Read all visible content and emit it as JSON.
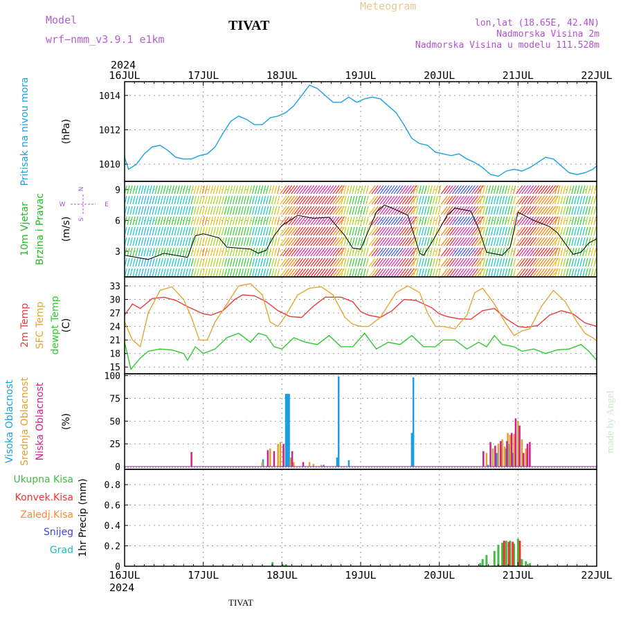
{
  "header": {
    "model_label": "Model",
    "model_name": "wrf−nmm_v3.9.1  e1km",
    "station": "TIVAT",
    "chart_title": "Meteogram",
    "location": "lon,lat (18.65E, 42.4N)",
    "elevation": "Nadmorska Visina 2m",
    "model_elevation": "Nadmorska Visina u modelu 111.528m",
    "year": "2024",
    "footer_station": "TIVAT",
    "watermark": "made by Angel"
  },
  "colors": {
    "pressure": "#1aa0e6",
    "temp2m": "#e83c3c",
    "sfc": "#e3a534",
    "dew": "#2dcc2d",
    "high_cloud": "#1a9fe0",
    "mid_cloud": "#e0a030",
    "low_cloud": "#d0208a",
    "total_precip": "#44bb44",
    "conv_precip": "#ee3333",
    "frz_precip": "#ff8833",
    "snow": "#4444dd",
    "grad": "#22bbbb"
  },
  "chart_data": [
    {
      "type": "line",
      "panel": "pressure",
      "ylabel": "(hPa)",
      "side_labels": [
        "Pritisak na nivou mora"
      ],
      "yticks": [
        1010,
        1012,
        1014
      ],
      "ylim": [
        1009,
        1014.8
      ],
      "x_ticks": [
        "16JUL",
        "17JUL",
        "18JUL",
        "19JUL",
        "20JUL",
        "21JUL",
        "22JUL"
      ],
      "x_day_range": [
        0,
        6
      ],
      "series": [
        {
          "color_key": "pressure",
          "x": [
            0,
            0.05,
            0.15,
            0.25,
            0.35,
            0.45,
            0.55,
            0.65,
            0.75,
            0.85,
            0.95,
            1.05,
            1.15,
            1.25,
            1.35,
            1.45,
            1.55,
            1.65,
            1.75,
            1.85,
            1.95,
            2.05,
            2.15,
            2.25,
            2.35,
            2.45,
            2.55,
            2.65,
            2.75,
            2.85,
            2.95,
            3.05,
            3.15,
            3.25,
            3.35,
            3.45,
            3.55,
            3.65,
            3.75,
            3.85,
            3.95,
            4.05,
            4.15,
            4.25,
            4.35,
            4.45,
            4.55,
            4.65,
            4.75,
            4.85,
            4.95,
            5.05,
            5.15,
            5.25,
            5.35,
            5.45,
            5.55,
            5.65,
            5.75,
            5.85,
            5.95,
            6.0
          ],
          "y": [
            1010.4,
            1009.7,
            1010.0,
            1010.6,
            1011.0,
            1011.1,
            1010.8,
            1010.4,
            1010.3,
            1010.3,
            1010.5,
            1010.6,
            1011.0,
            1011.8,
            1012.5,
            1012.8,
            1012.6,
            1012.3,
            1012.3,
            1012.7,
            1012.8,
            1013.0,
            1013.4,
            1014.0,
            1014.6,
            1014.4,
            1014.0,
            1013.6,
            1013.6,
            1013.9,
            1013.6,
            1013.8,
            1013.9,
            1013.8,
            1013.4,
            1013.0,
            1012.3,
            1011.5,
            1011.2,
            1011.1,
            1010.7,
            1010.6,
            1010.5,
            1010.6,
            1010.3,
            1010.1,
            1009.8,
            1009.4,
            1009.3,
            1009.6,
            1009.7,
            1009.6,
            1009.8,
            1010.1,
            1010.4,
            1010.3,
            1009.9,
            1009.5,
            1009.4,
            1009.5,
            1009.7,
            1009.9
          ]
        }
      ]
    },
    {
      "type": "line",
      "panel": "wind",
      "ylabel": "(m/s)",
      "side_labels": [
        "10m Vjetar",
        "Brzina i Pravac"
      ],
      "compass": {
        "n": "N",
        "w": "W",
        "e": "E",
        "s": "S"
      },
      "yticks": [
        3,
        6,
        9
      ],
      "ylim": [
        0.5,
        9.8
      ],
      "x_day_range": [
        0,
        6
      ],
      "series": [
        {
          "name": "speed",
          "color": "#000000",
          "x": [
            0,
            0.3,
            0.5,
            0.8,
            0.9,
            1.0,
            1.2,
            1.3,
            1.6,
            1.7,
            1.8,
            1.9,
            2.0,
            2.2,
            2.4,
            2.6,
            2.8,
            2.9,
            3.0,
            3.2,
            3.3,
            3.4,
            3.6,
            3.75,
            3.8,
            3.9,
            4.1,
            4.2,
            4.4,
            4.5,
            4.6,
            4.8,
            4.9,
            5.0,
            5.2,
            5.4,
            5.5,
            5.7,
            5.8,
            5.9,
            6.0
          ],
          "y": [
            2.6,
            2.2,
            2.8,
            2.4,
            4.5,
            4.7,
            4.3,
            3.4,
            3.2,
            2.8,
            3.1,
            4.5,
            5.5,
            6.5,
            6.2,
            6.3,
            4.5,
            3.3,
            3.2,
            6.8,
            7.5,
            7.2,
            6.5,
            2.8,
            2.6,
            3.8,
            6.5,
            7.2,
            6.9,
            5.2,
            2.9,
            2.6,
            3.4,
            6.8,
            6.0,
            5.4,
            4.8,
            2.7,
            2.9,
            3.8,
            4.2
          ]
        }
      ]
    },
    {
      "type": "line",
      "panel": "temperature",
      "ylabel": "(C)",
      "side_labels": [
        "2m Temp",
        "SFC Temp",
        "dewpt Temp"
      ],
      "yticks": [
        15,
        18,
        21,
        24,
        27,
        30,
        33
      ],
      "ylim": [
        13.5,
        35
      ],
      "x_day_range": [
        0,
        6
      ],
      "series": [
        {
          "name": "2m Temp",
          "color_key": "temp2m",
          "x": [
            0,
            0.1,
            0.2,
            0.35,
            0.5,
            0.65,
            0.8,
            0.95,
            1.0,
            1.1,
            1.25,
            1.4,
            1.5,
            1.65,
            1.8,
            1.95,
            2.1,
            2.25,
            2.4,
            2.55,
            2.75,
            2.9,
            3.0,
            3.1,
            3.25,
            3.4,
            3.55,
            3.7,
            3.9,
            4.0,
            4.1,
            4.25,
            4.4,
            4.55,
            4.7,
            4.85,
            5.0,
            5.1,
            5.25,
            5.4,
            5.55,
            5.7,
            5.85,
            6.0
          ],
          "y": [
            26.5,
            29.0,
            28.0,
            30.2,
            30.5,
            29.8,
            28.4,
            27.2,
            26.8,
            26.5,
            27.5,
            30.0,
            31.0,
            30.8,
            29.5,
            27.5,
            26.2,
            26.0,
            28.5,
            30.5,
            30.5,
            29.5,
            27.3,
            26.5,
            26.0,
            27.5,
            30.0,
            29.8,
            28.2,
            26.8,
            26.2,
            25.7,
            25.6,
            27.5,
            28.0,
            25.7,
            24.0,
            23.8,
            24.2,
            26.5,
            27.5,
            26.8,
            24.8,
            24.0
          ]
        },
        {
          "name": "SFC Temp",
          "color_key": "sfc",
          "x": [
            0,
            0.1,
            0.2,
            0.3,
            0.45,
            0.6,
            0.75,
            0.85,
            0.95,
            1.05,
            1.15,
            1.3,
            1.45,
            1.6,
            1.75,
            1.85,
            1.95,
            2.05,
            2.2,
            2.35,
            2.5,
            2.65,
            2.8,
            2.9,
            3.0,
            3.1,
            3.25,
            3.45,
            3.6,
            3.75,
            3.85,
            3.95,
            4.05,
            4.2,
            4.35,
            4.45,
            4.55,
            4.7,
            4.85,
            4.95,
            5.05,
            5.15,
            5.3,
            5.45,
            5.6,
            5.75,
            5.85,
            5.95,
            6.0
          ],
          "y": [
            25.0,
            21.0,
            19.5,
            27.0,
            32.0,
            32.8,
            30.0,
            26.0,
            21.0,
            21.0,
            25.0,
            29.0,
            33.0,
            33.5,
            31.0,
            25.0,
            24.0,
            26.5,
            31.0,
            32.5,
            32.8,
            31.0,
            26.0,
            24.5,
            24.0,
            24.0,
            26.0,
            31.5,
            33.0,
            31.5,
            27.0,
            24.0,
            24.0,
            23.5,
            26.5,
            31.5,
            32.5,
            29.0,
            24.5,
            22.0,
            23.0,
            23.5,
            28.5,
            32.0,
            29.5,
            25.0,
            22.5,
            21.5,
            20.8
          ]
        },
        {
          "name": "dewpt Temp",
          "color_key": "dew",
          "x": [
            0,
            0.08,
            0.2,
            0.3,
            0.45,
            0.6,
            0.75,
            0.8,
            0.9,
            1.0,
            1.15,
            1.3,
            1.45,
            1.6,
            1.7,
            1.8,
            1.9,
            2.0,
            2.15,
            2.3,
            2.45,
            2.6,
            2.75,
            2.9,
            3.05,
            3.2,
            3.35,
            3.5,
            3.65,
            3.8,
            3.95,
            4.05,
            4.2,
            4.35,
            4.5,
            4.6,
            4.7,
            4.8,
            4.95,
            5.05,
            5.2,
            5.35,
            5.5,
            5.65,
            5.8,
            5.9,
            6.0
          ],
          "y": [
            20.5,
            14.5,
            17.0,
            18.5,
            19.0,
            18.8,
            18.0,
            16.5,
            19.5,
            18.0,
            19.0,
            21.5,
            22.5,
            20.5,
            22.5,
            22.0,
            19.5,
            19.0,
            21.5,
            20.5,
            20.0,
            22.0,
            19.5,
            19.5,
            22.5,
            19.0,
            20.5,
            20.0,
            22.0,
            19.5,
            19.5,
            21.0,
            21.0,
            19.0,
            20.5,
            19.5,
            22.0,
            20.0,
            19.5,
            18.5,
            19.0,
            18.0,
            18.8,
            19.0,
            20.0,
            18.5,
            16.5
          ]
        }
      ]
    },
    {
      "type": "bar",
      "panel": "clouds",
      "ylabel": "(%)",
      "side_labels": [
        "Visoka Oblacnost",
        "Srednja Oblacnost",
        "Niska Oblacnost"
      ],
      "yticks": [
        0,
        25,
        50,
        75,
        100
      ],
      "ylim": [
        -3,
        102
      ],
      "x_day_range": [
        0,
        6
      ],
      "series": [
        {
          "name": "Visoka Oblacnost",
          "color_key": "high_cloud",
          "x": [
            1.76,
            2.05,
            2.07,
            2.09,
            2.53,
            2.7,
            2.72,
            2.85,
            3.65,
            3.67,
            4.62,
            4.73,
            4.85,
            4.88,
            4.93
          ],
          "y": [
            8,
            80,
            80,
            80,
            2,
            10,
            99,
            7,
            37,
            98,
            2,
            15,
            20,
            25,
            15
          ]
        },
        {
          "name": "Srednja Oblacnost",
          "color_key": "mid_cloud",
          "x": [
            1.75,
            1.85,
            1.95,
            1.98,
            2.02,
            2.11,
            2.15,
            2.35,
            2.4,
            2.5,
            4.6,
            4.68,
            4.75,
            4.8,
            4.83,
            4.87,
            4.9,
            4.95,
            5.0,
            5.05,
            5.1
          ],
          "y": [
            5,
            20,
            25,
            27,
            20,
            10,
            5,
            5,
            3,
            2,
            15,
            20,
            25,
            30,
            22,
            37,
            35,
            36,
            50,
            30,
            20
          ]
        },
        {
          "name": "Niska Oblacnost",
          "color_key": "low_cloud",
          "x": [
            0.85,
            1.82,
            1.9,
            2.02,
            2.13,
            2.27,
            4.56,
            4.65,
            4.71,
            4.78,
            4.86,
            4.92,
            4.97,
            5.02,
            5.07,
            5.12,
            5.15
          ],
          "y": [
            16,
            18,
            17,
            25,
            17,
            5,
            17,
            27,
            23,
            28,
            28,
            37,
            53,
            45,
            15,
            25,
            27
          ]
        }
      ]
    },
    {
      "type": "bar",
      "panel": "precipitation",
      "ylabel": "1hr Precip (mm)",
      "side_labels": [
        "Ukupna Kisa",
        "Konvek.Kisa",
        "Zaledj.Kisa",
        "Snijeg",
        "Grad"
      ],
      "yticks": [
        0,
        0.2,
        0.4,
        0.6,
        0.8
      ],
      "ylim": [
        0,
        0.95
      ],
      "x_day_range": [
        0,
        6
      ],
      "x_ticks": [
        "16JUL",
        "17JUL",
        "18JUL",
        "19JUL",
        "20JUL",
        "21JUL",
        "22JUL"
      ],
      "series": [
        {
          "name": "Ukupna Kisa",
          "color_key": "total_precip",
          "x": [
            1.88,
            2.01,
            2.05,
            4.52,
            4.55,
            4.6,
            4.7,
            4.75,
            4.8,
            4.85,
            4.9,
            4.95,
            5.0,
            5.05,
            5.1,
            5.15
          ],
          "y": [
            0.04,
            0.02,
            0.02,
            0.03,
            0.07,
            0.11,
            0.15,
            0.21,
            0.23,
            0.25,
            0.25,
            0.22,
            0.27,
            0.07,
            0.05,
            0.03
          ]
        },
        {
          "name": "Konvek.Kisa",
          "color_key": "conv_precip",
          "x": [
            4.81,
            4.87,
            4.92,
            5.01
          ],
          "y": [
            0.25,
            0.24,
            0.24,
            0.25
          ]
        }
      ]
    }
  ]
}
